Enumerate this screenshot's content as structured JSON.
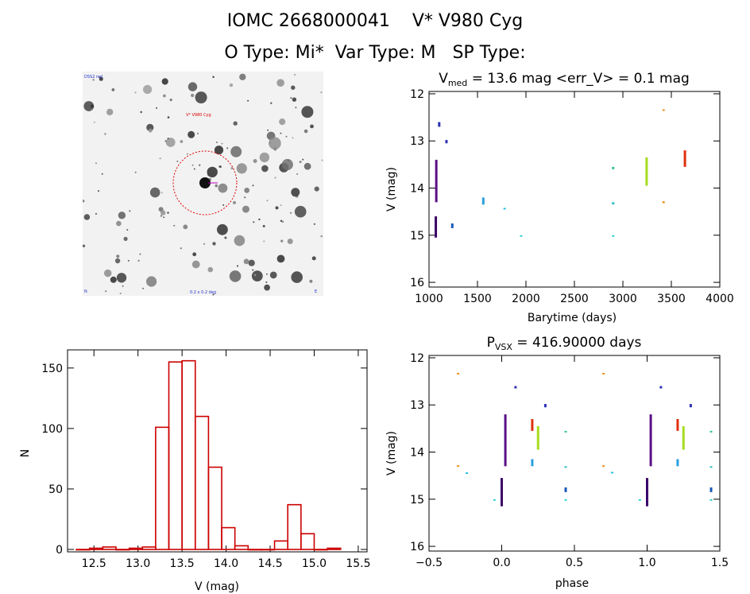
{
  "header": {
    "line1": "IOMC 2668000041    V* V980 Cyg",
    "line2": "O Type: Mi*  Var Type: M   SP Type:"
  },
  "image_panel": {
    "label_top_left": "DSS2 red",
    "label_target": "V* V980 Cyg",
    "label_bottom_left": "N",
    "label_bottom_center": "0.2 x 0.2 deg",
    "label_bottom_right": "E"
  },
  "chart_data": [
    {
      "id": "lightcurve",
      "type": "scatter",
      "title_main": "V",
      "title_sub": "med",
      "title_rest": " = 13.6 mag <err_V> = 0.1 mag",
      "xlabel": "Barytime (days)",
      "ylabel": "V (mag)",
      "xlim": [
        1000,
        4000
      ],
      "ylim": [
        16.1,
        11.95
      ],
      "xticks": [
        "1000",
        "1500",
        "2000",
        "2500",
        "3000",
        "3500",
        "4000"
      ],
      "yticks": [
        "12",
        "13",
        "14",
        "15",
        "16"
      ],
      "clusters": [
        {
          "x": 1075,
          "y0": 13.4,
          "y1": 14.3,
          "color": "#5b0f86"
        },
        {
          "x": 1070,
          "y0": 14.6,
          "y1": 15.05,
          "color": "#3a0068"
        },
        {
          "x": 1105,
          "y0": 12.6,
          "y1": 12.7,
          "color": "#2b33b5"
        },
        {
          "x": 1180,
          "y0": 12.98,
          "y1": 13.05,
          "color": "#2b33b5"
        },
        {
          "x": 1240,
          "y0": 14.75,
          "y1": 14.85,
          "color": "#1a5ab8"
        },
        {
          "x": 1560,
          "y0": 14.2,
          "y1": 14.35,
          "color": "#2aa0e0"
        },
        {
          "x": 1780,
          "y0": 14.42,
          "y1": 14.44,
          "color": "#2ac0e0"
        },
        {
          "x": 1950,
          "y0": 15.0,
          "y1": 15.02,
          "color": "#30d0d0"
        },
        {
          "x": 2900,
          "y0": 13.55,
          "y1": 13.6,
          "color": "#30c0a0"
        },
        {
          "x": 2900,
          "y0": 14.3,
          "y1": 14.35,
          "color": "#30c0c0"
        },
        {
          "x": 2900,
          "y0": 15.0,
          "y1": 15.02,
          "color": "#30d0d0"
        },
        {
          "x": 3245,
          "y0": 13.35,
          "y1": 13.95,
          "color": "#a8dc1e"
        },
        {
          "x": 3420,
          "y0": 12.33,
          "y1": 12.35,
          "color": "#f09020"
        },
        {
          "x": 3420,
          "y0": 14.28,
          "y1": 14.32,
          "color": "#f09020"
        },
        {
          "x": 3640,
          "y0": 13.2,
          "y1": 13.55,
          "color": "#e03010"
        }
      ]
    },
    {
      "id": "histogram",
      "type": "bar",
      "xlabel": "V (mag)",
      "ylabel": "N",
      "xlim": [
        12.2,
        15.6
      ],
      "ylim": [
        -2,
        165
      ],
      "xticks": [
        "12.5",
        "13.0",
        "13.5",
        "14.0",
        "14.5",
        "15.0",
        "15.5"
      ],
      "yticks": [
        "0",
        "50",
        "100",
        "150"
      ],
      "bin_width": 0.15,
      "bin_starts": [
        12.3,
        12.45,
        12.6,
        12.75,
        12.9,
        13.05,
        13.2,
        13.35,
        13.5,
        13.65,
        13.8,
        13.95,
        14.1,
        14.25,
        14.4,
        14.55,
        14.7,
        14.85,
        15.0,
        15.15
      ],
      "counts": [
        0,
        1,
        2,
        0,
        1,
        2,
        101,
        155,
        156,
        110,
        68,
        18,
        3,
        0,
        0,
        7,
        37,
        13,
        0,
        1
      ],
      "bar_color": "#cc0000"
    },
    {
      "id": "phased",
      "type": "scatter",
      "title_main": "P",
      "title_sub": "VSX",
      "title_rest": " = 416.90000 days",
      "xlabel": "phase",
      "ylabel": "V (mag)",
      "xlim": [
        -0.5,
        1.5
      ],
      "ylim": [
        16.1,
        11.95
      ],
      "xticks": [
        "−0.5",
        "0.0",
        "0.5",
        "1.0",
        "1.5"
      ],
      "yticks": [
        "12",
        "13",
        "14",
        "15",
        "16"
      ],
      "clusters": [
        {
          "x": 0.0,
          "y0": 14.55,
          "y1": 15.15,
          "color": "#3a0068"
        },
        {
          "x": 0.025,
          "y0": 13.2,
          "y1": 14.3,
          "color": "#5b0f86"
        },
        {
          "x": 0.095,
          "y0": 12.6,
          "y1": 12.65,
          "color": "#2b33b5"
        },
        {
          "x": 0.21,
          "y0": 13.3,
          "y1": 13.55,
          "color": "#e03010"
        },
        {
          "x": 0.21,
          "y0": 14.15,
          "y1": 14.3,
          "color": "#2aa0e0"
        },
        {
          "x": 0.25,
          "y0": 13.45,
          "y1": 13.95,
          "color": "#a8dc1e"
        },
        {
          "x": 0.3,
          "y0": 12.98,
          "y1": 13.05,
          "color": "#2b33b5"
        },
        {
          "x": 0.44,
          "y0": 13.55,
          "y1": 13.58,
          "color": "#30c0a0"
        },
        {
          "x": 0.44,
          "y0": 14.3,
          "y1": 14.32,
          "color": "#30c0c0"
        },
        {
          "x": 0.44,
          "y0": 14.75,
          "y1": 14.85,
          "color": "#1a5ab8"
        },
        {
          "x": 0.44,
          "y0": 15.0,
          "y1": 15.02,
          "color": "#30d0d0"
        },
        {
          "x": -0.3,
          "y0": 12.32,
          "y1": 12.34,
          "color": "#f09020"
        },
        {
          "x": -0.3,
          "y0": 14.28,
          "y1": 14.31,
          "color": "#f09020"
        },
        {
          "x": -0.24,
          "y0": 14.43,
          "y1": 14.45,
          "color": "#2ac0e0"
        },
        {
          "x": -0.05,
          "y0": 15.0,
          "y1": 15.02,
          "color": "#30d0d0"
        },
        {
          "x": 0.76,
          "y0": 14.42,
          "y1": 14.44,
          "color": "#2ac0e0"
        },
        {
          "x": 0.7,
          "y0": 12.32,
          "y1": 12.34,
          "color": "#f09020"
        },
        {
          "x": 0.7,
          "y0": 14.28,
          "y1": 14.31,
          "color": "#f09020"
        },
        {
          "x": 0.95,
          "y0": 15.0,
          "y1": 15.02,
          "color": "#30d0d0"
        },
        {
          "x": 1.0,
          "y0": 14.55,
          "y1": 15.15,
          "color": "#3a0068"
        },
        {
          "x": 1.025,
          "y0": 13.2,
          "y1": 14.3,
          "color": "#5b0f86"
        },
        {
          "x": 1.095,
          "y0": 12.6,
          "y1": 12.65,
          "color": "#2b33b5"
        },
        {
          "x": 1.21,
          "y0": 13.3,
          "y1": 13.55,
          "color": "#e03010"
        },
        {
          "x": 1.21,
          "y0": 14.15,
          "y1": 14.3,
          "color": "#2aa0e0"
        },
        {
          "x": 1.25,
          "y0": 13.45,
          "y1": 13.95,
          "color": "#a8dc1e"
        },
        {
          "x": 1.3,
          "y0": 12.98,
          "y1": 13.05,
          "color": "#2b33b5"
        },
        {
          "x": 1.44,
          "y0": 13.55,
          "y1": 13.58,
          "color": "#30c0a0"
        },
        {
          "x": 1.44,
          "y0": 14.3,
          "y1": 14.32,
          "color": "#30c0c0"
        },
        {
          "x": 1.44,
          "y0": 14.75,
          "y1": 14.85,
          "color": "#1a5ab8"
        },
        {
          "x": 1.44,
          "y0": 15.0,
          "y1": 15.02,
          "color": "#30d0d0"
        }
      ]
    }
  ]
}
